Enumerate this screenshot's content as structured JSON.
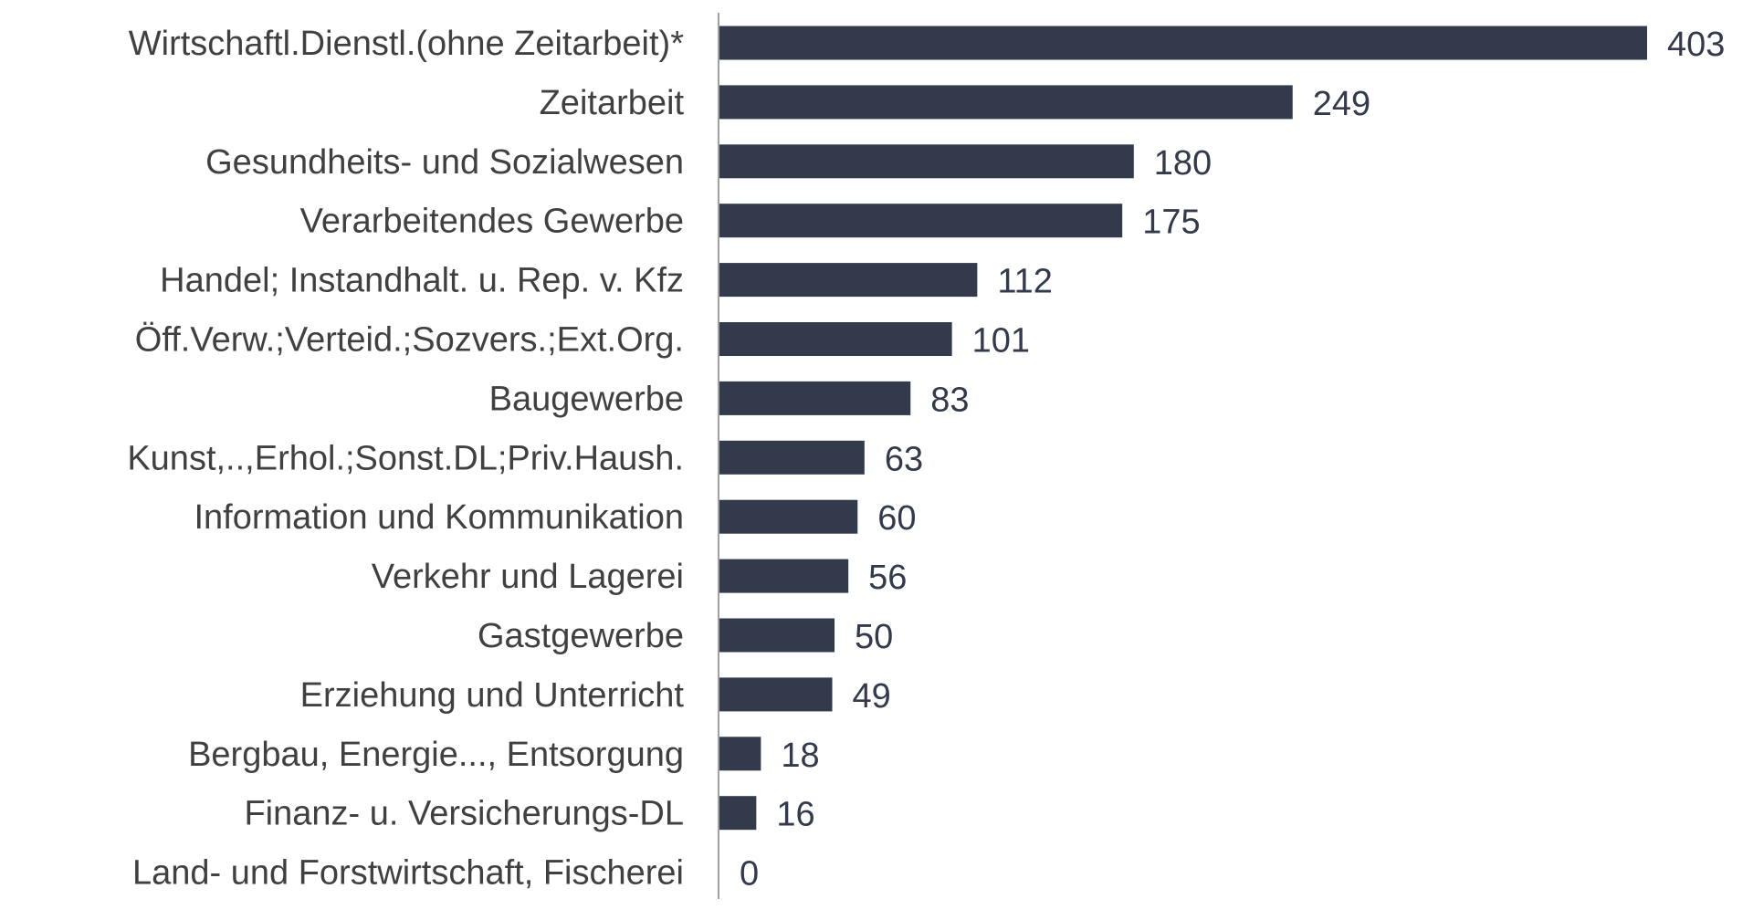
{
  "chart_data": {
    "type": "bar",
    "orientation": "horizontal",
    "title": "",
    "xlabel": "",
    "ylabel": "",
    "categories": [
      "Wirtschaftl.Dienstl.(ohne Zeitarbeit)*",
      "Zeitarbeit",
      "Gesundheits- und Sozialwesen",
      "Verarbeitendes Gewerbe",
      "Handel; Instandhalt. u. Rep. v. Kfz",
      "Öff.Verw.;Verteid.;Sozvers.;Ext.Org.",
      "Baugewerbe",
      "Kunst,..,Erhol.;Sonst.DL;Priv.Haush.",
      "Information und Kommunikation",
      "Verkehr und Lagerei",
      "Gastgewerbe",
      "Erziehung und Unterricht",
      "Bergbau, Energie..., Entsorgung",
      "Finanz- u. Versicherungs-DL",
      "Land- und Forstwirtschaft, Fischerei"
    ],
    "values": [
      403,
      249,
      180,
      175,
      112,
      101,
      83,
      63,
      60,
      56,
      50,
      49,
      18,
      16,
      0
    ],
    "xlim": [
      0,
      403
    ],
    "grid": false,
    "bar_color": "#323a4b"
  }
}
